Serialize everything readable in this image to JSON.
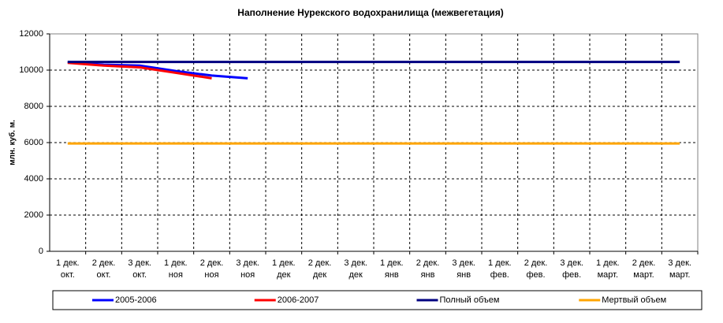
{
  "chart_data": {
    "type": "line",
    "title": "Наполнение Нурекского водохранилища (межвегетация)",
    "y_label": "млн. куб. м.",
    "categories": [
      [
        "1 дек.",
        "окт."
      ],
      [
        "2 дек.",
        "окт."
      ],
      [
        "3 дек.",
        "окт."
      ],
      [
        "1 дек.",
        "ноя"
      ],
      [
        "2 дек.",
        "ноя"
      ],
      [
        "3 дек.",
        "ноя"
      ],
      [
        "1 дек.",
        "дек"
      ],
      [
        "2 дек.",
        "дек"
      ],
      [
        "3 дек.",
        "дек"
      ],
      [
        "1 дек.",
        "янв"
      ],
      [
        "2 дек.",
        "янв"
      ],
      [
        "3 дек.",
        "янв"
      ],
      [
        "1 дек.",
        "фев."
      ],
      [
        "2 дек.",
        "фев."
      ],
      [
        "3 дек.",
        "фев."
      ],
      [
        "1 дек.",
        "март."
      ],
      [
        "2 дек.",
        "март."
      ],
      [
        "3 дек.",
        "март."
      ]
    ],
    "series": [
      {
        "name": "2005-2006",
        "color": "#0000ff",
        "values": [
          10450,
          10300,
          10250,
          9950,
          9700,
          9550,
          null,
          null,
          null,
          null,
          null,
          null,
          null,
          null,
          null,
          null,
          null,
          null
        ]
      },
      {
        "name": "2006-2007",
        "color": "#ff0000",
        "values": [
          10400,
          10250,
          10150,
          9850,
          9550,
          null,
          null,
          null,
          null,
          null,
          null,
          null,
          null,
          null,
          null,
          null,
          null,
          null
        ]
      },
      {
        "name": "Полный объем",
        "color": "#000080",
        "values": [
          10450,
          10450,
          10450,
          10450,
          10450,
          10450,
          10450,
          10450,
          10450,
          10450,
          10450,
          10450,
          10450,
          10450,
          10450,
          10450,
          10450,
          10450
        ]
      },
      {
        "name": "Мертвый объем",
        "color": "#ffa500",
        "values": [
          5950,
          5950,
          5950,
          5950,
          5950,
          5950,
          5950,
          5950,
          5950,
          5950,
          5950,
          5950,
          5950,
          5950,
          5950,
          5950,
          5950,
          5950
        ]
      }
    ],
    "ylim": [
      0,
      12000
    ],
    "yticks": [
      0,
      2000,
      4000,
      6000,
      8000,
      10000,
      12000
    ],
    "grid": true,
    "legend": "bottom"
  }
}
